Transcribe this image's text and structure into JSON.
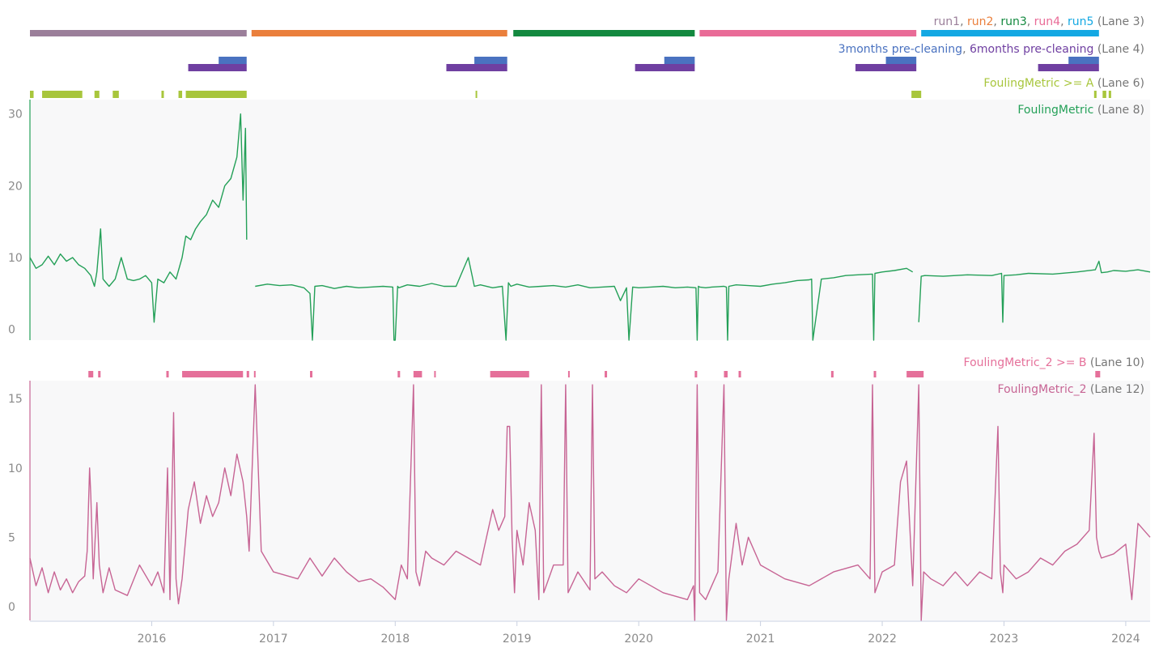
{
  "lanes": {
    "lane3": {
      "parts": [
        {
          "text": "run1",
          "color": "#9b7f9a"
        },
        {
          "text": ", ",
          "color": "#777777"
        },
        {
          "text": "run2",
          "color": "#ea7f3c"
        },
        {
          "text": ", ",
          "color": "#777777"
        },
        {
          "text": "run3",
          "color": "#13893f"
        },
        {
          "text": ", ",
          "color": "#777777"
        },
        {
          "text": "run4",
          "color": "#e96b97"
        },
        {
          "text": ", ",
          "color": "#777777"
        },
        {
          "text": "run5",
          "color": "#13a8e3"
        },
        {
          "text": " (Lane 3)",
          "color": "#777777"
        }
      ]
    },
    "lane4": {
      "parts": [
        {
          "text": "3months pre-cleaning",
          "color": "#4a72c0"
        },
        {
          "text": ", ",
          "color": "#777777"
        },
        {
          "text": "6months pre-cleaning",
          "color": "#6f3fa1"
        },
        {
          "text": " (Lane 4)",
          "color": "#777777"
        }
      ]
    },
    "lane6": {
      "parts": [
        {
          "text": "FoulingMetric >= A",
          "color": "#a8c63c"
        },
        {
          "text": " (Lane 6)",
          "color": "#777777"
        }
      ]
    },
    "lane8": {
      "parts": [
        {
          "text": "FoulingMetric",
          "color": "#24a058"
        },
        {
          "text": " (Lane 8)",
          "color": "#777777"
        }
      ]
    },
    "lane10": {
      "parts": [
        {
          "text": "FoulingMetric_2 >= B",
          "color": "#e5709a"
        },
        {
          "text": " (Lane 10)",
          "color": "#777777"
        }
      ]
    },
    "lane12": {
      "parts": [
        {
          "text": "FoulingMetric_2",
          "color": "#c76494"
        },
        {
          "text": " (Lane 12)",
          "color": "#777777"
        }
      ]
    }
  },
  "chart_data": {
    "type": "line",
    "x_axis": {
      "type": "time",
      "range": [
        2015.0,
        2024.2
      ],
      "ticks": [
        "2016",
        "2017",
        "2018",
        "2019",
        "2020",
        "2021",
        "2022",
        "2023",
        "2024"
      ]
    },
    "runs": [
      {
        "name": "run1",
        "start": 2015.0,
        "end": 2016.78,
        "color": "#9b7f9a"
      },
      {
        "name": "run2",
        "start": 2016.82,
        "end": 2018.92,
        "color": "#ea7f3c"
      },
      {
        "name": "run3",
        "start": 2018.97,
        "end": 2020.46,
        "color": "#13893f"
      },
      {
        "name": "run4",
        "start": 2020.5,
        "end": 2022.28,
        "color": "#e96b97"
      },
      {
        "name": "run5",
        "start": 2022.32,
        "end": 2023.78,
        "color": "#13a8e3"
      }
    ],
    "pre_cleaning": {
      "3months": {
        "color": "#4a72c0",
        "intervals": [
          [
            2016.55,
            2016.78
          ],
          [
            2018.65,
            2018.92
          ],
          [
            2020.21,
            2020.46
          ],
          [
            2022.03,
            2022.28
          ],
          [
            2023.53,
            2023.78
          ]
        ]
      },
      "6months": {
        "color": "#6f3fa1",
        "intervals": [
          [
            2016.3,
            2016.78
          ],
          [
            2018.42,
            2018.92
          ],
          [
            2019.97,
            2020.46
          ],
          [
            2021.78,
            2022.28
          ],
          [
            2023.28,
            2023.78
          ]
        ]
      }
    },
    "fouling_metric_ge_A": {
      "color": "#a8c63c",
      "intervals": [
        [
          2015.0,
          2015.03
        ],
        [
          2015.1,
          2015.43
        ],
        [
          2015.53,
          2015.57
        ],
        [
          2015.68,
          2015.73
        ],
        [
          2016.08,
          2016.1
        ],
        [
          2016.22,
          2016.25
        ],
        [
          2016.28,
          2016.78
        ],
        [
          2018.66,
          2018.67
        ],
        [
          2022.24,
          2022.32
        ],
        [
          2023.74,
          2023.76
        ],
        [
          2023.81,
          2023.84
        ],
        [
          2023.86,
          2023.88
        ]
      ]
    },
    "fouling_metric": {
      "color": "#24a058",
      "ylim": [
        -1.5,
        32
      ],
      "yticks": [
        0,
        10,
        20,
        30
      ],
      "x": [
        2015.0,
        2015.05,
        2015.1,
        2015.15,
        2015.2,
        2015.25,
        2015.3,
        2015.35,
        2015.4,
        2015.45,
        2015.5,
        2015.53,
        2015.55,
        2015.58,
        2015.6,
        2015.65,
        2015.7,
        2015.75,
        2015.8,
        2015.85,
        2015.9,
        2015.95,
        2016.0,
        2016.02,
        2016.05,
        2016.1,
        2016.15,
        2016.2,
        2016.25,
        2016.28,
        2016.32,
        2016.36,
        2016.4,
        2016.45,
        2016.5,
        2016.55,
        2016.6,
        2016.65,
        2016.7,
        2016.73,
        2016.75,
        2016.77,
        2016.78,
        null,
        2016.85,
        2016.95,
        2017.05,
        2017.15,
        2017.25,
        2017.3,
        2017.32,
        2017.34,
        2017.4,
        2017.5,
        2017.6,
        2017.7,
        2017.8,
        2017.9,
        2017.98,
        2017.99,
        2018.0,
        2018.02,
        2018.03,
        2018.1,
        2018.2,
        2018.3,
        2018.4,
        2018.5,
        2018.6,
        2018.65,
        2018.7,
        2018.8,
        2018.88,
        2018.91,
        2018.93,
        2018.95,
        2019.0,
        2019.1,
        2019.2,
        2019.3,
        2019.4,
        2019.5,
        2019.6,
        2019.7,
        2019.8,
        2019.85,
        2019.9,
        2019.92,
        2019.95,
        2020.0,
        2020.1,
        2020.2,
        2020.3,
        2020.4,
        2020.47,
        2020.48,
        2020.49,
        2020.5,
        2020.55,
        2020.6,
        2020.7,
        2020.72,
        2020.73,
        2020.74,
        2020.8,
        2020.9,
        2021.0,
        2021.1,
        2021.2,
        2021.3,
        2021.4,
        2021.42,
        2021.43,
        2021.5,
        2021.6,
        2021.7,
        2021.8,
        2021.92,
        2021.93,
        2021.94,
        2022.0,
        2022.1,
        2022.2,
        2022.25,
        null,
        2022.3,
        2022.32,
        2022.35,
        2022.5,
        2022.7,
        2022.9,
        2022.98,
        2022.99,
        2023.0,
        2023.1,
        2023.2,
        2023.4,
        2023.6,
        2023.75,
        2023.78,
        2023.8,
        2023.85,
        2023.9,
        2024.0,
        2024.1,
        2024.2
      ],
      "y": [
        10,
        8.5,
        9,
        10.2,
        9,
        10.5,
        9.5,
        10,
        9,
        8.5,
        7.5,
        6,
        8,
        14,
        7,
        6,
        7,
        10,
        7,
        6.8,
        7,
        7.5,
        6.5,
        1,
        7,
        6.5,
        8,
        7,
        10,
        13,
        12.5,
        14,
        15,
        16,
        18,
        17,
        20,
        21,
        24,
        30,
        18,
        28,
        12.5,
        null,
        6,
        6.3,
        6.1,
        6.2,
        5.8,
        5,
        -1.5,
        6,
        6.1,
        5.7,
        6,
        5.8,
        5.9,
        6,
        5.9,
        -1.5,
        -1.5,
        6,
        5.8,
        6.2,
        6,
        6.4,
        6,
        6,
        10,
        6,
        6.2,
        5.8,
        6,
        -1.5,
        6.5,
        6,
        6.3,
        5.9,
        6,
        6.1,
        5.9,
        6.2,
        5.8,
        5.9,
        6,
        4,
        5.8,
        -1.5,
        5.9,
        5.8,
        5.9,
        6,
        5.8,
        5.9,
        5.8,
        -1.5,
        6,
        5.9,
        5.8,
        5.9,
        6,
        5.9,
        -1.5,
        6,
        6.2,
        6.1,
        6,
        6.3,
        6.5,
        6.8,
        6.9,
        7,
        -1.5,
        7,
        7.2,
        7.5,
        7.6,
        7.7,
        -1.5,
        7.8,
        8,
        8.2,
        8.5,
        8,
        null,
        1,
        7.4,
        7.5,
        7.4,
        7.6,
        7.5,
        7.8,
        1,
        7.5,
        7.6,
        7.8,
        7.7,
        8,
        8.3,
        9.5,
        7.9,
        8,
        8.2,
        8.1,
        8.3,
        8
      ]
    },
    "fouling_metric_2_ge_B": {
      "color": "#e5709a",
      "intervals": [
        [
          2015.48,
          2015.52
        ],
        [
          2015.56,
          2015.58
        ],
        [
          2016.12,
          2016.14
        ],
        [
          2016.25,
          2016.75
        ],
        [
          2016.78,
          2016.8
        ],
        [
          2016.84,
          2016.85
        ],
        [
          2017.3,
          2017.32
        ],
        [
          2018.02,
          2018.04
        ],
        [
          2018.15,
          2018.22
        ],
        [
          2018.32,
          2018.33
        ],
        [
          2018.78,
          2019.1
        ],
        [
          2019.42,
          2019.43
        ],
        [
          2019.72,
          2019.74
        ],
        [
          2020.46,
          2020.48
        ],
        [
          2020.7,
          2020.73
        ],
        [
          2020.82,
          2020.84
        ],
        [
          2021.58,
          2021.6
        ],
        [
          2021.93,
          2021.95
        ],
        [
          2022.2,
          2022.34
        ],
        [
          2023.75,
          2023.79
        ]
      ]
    },
    "fouling_metric_2": {
      "color": "#c76494",
      "ylim": [
        -1,
        16.3
      ],
      "yticks": [
        0,
        5,
        10,
        15
      ],
      "x": [
        2015.0,
        2015.05,
        2015.1,
        2015.15,
        2015.2,
        2015.25,
        2015.3,
        2015.35,
        2015.4,
        2015.45,
        2015.47,
        2015.49,
        2015.5,
        2015.52,
        2015.55,
        2015.57,
        2015.6,
        2015.65,
        2015.7,
        2015.8,
        2015.9,
        2016.0,
        2016.05,
        2016.1,
        2016.13,
        2016.15,
        2016.18,
        2016.2,
        2016.22,
        2016.25,
        2016.3,
        2016.35,
        2016.4,
        2016.45,
        2016.5,
        2016.55,
        2016.6,
        2016.65,
        2016.7,
        2016.75,
        2016.78,
        2016.8,
        2016.85,
        2016.9,
        2017.0,
        2017.2,
        2017.3,
        2017.4,
        2017.5,
        2017.6,
        2017.7,
        2017.8,
        2017.9,
        2018.0,
        2018.05,
        2018.1,
        2018.15,
        2018.17,
        2018.2,
        2018.25,
        2018.3,
        2018.4,
        2018.5,
        2018.6,
        2018.7,
        2018.75,
        2018.8,
        2018.85,
        2018.9,
        2018.92,
        2018.94,
        2018.96,
        2018.98,
        2019.0,
        2019.05,
        2019.1,
        2019.15,
        2019.18,
        2019.2,
        2019.22,
        2019.3,
        2019.38,
        2019.4,
        2019.42,
        2019.5,
        2019.6,
        2019.62,
        2019.64,
        2019.7,
        2019.8,
        2019.9,
        2020.0,
        2020.2,
        2020.4,
        2020.45,
        2020.46,
        2020.48,
        2020.5,
        2020.55,
        2020.6,
        2020.65,
        2020.7,
        2020.72,
        2020.74,
        2020.8,
        2020.85,
        2020.9,
        2021.0,
        2021.2,
        2021.4,
        2021.6,
        2021.8,
        2021.9,
        2021.92,
        2021.94,
        2022.0,
        2022.1,
        2022.15,
        2022.2,
        2022.25,
        2022.3,
        2022.32,
        2022.34,
        2022.4,
        2022.5,
        2022.6,
        2022.7,
        2022.8,
        2022.9,
        2022.95,
        2022.97,
        2022.99,
        2023.0,
        2023.1,
        2023.2,
        2023.3,
        2023.4,
        2023.5,
        2023.6,
        2023.7,
        2023.74,
        2023.76,
        2023.78,
        2023.8,
        2023.9,
        2024.0,
        2024.05,
        2024.1,
        2024.15,
        2024.2
      ],
      "y": [
        3.5,
        1.5,
        2.8,
        1,
        2.5,
        1.2,
        2,
        1,
        1.8,
        2.2,
        4,
        10,
        8,
        2,
        7.5,
        3,
        1,
        2.8,
        1.2,
        0.8,
        3,
        1.5,
        2.5,
        1,
        10,
        0.5,
        14,
        2,
        0.2,
        2,
        7,
        9,
        6,
        8,
        6.5,
        7.5,
        10,
        8,
        11,
        9,
        6.5,
        4,
        16,
        4,
        2.5,
        2,
        3.5,
        2.2,
        3.5,
        2.5,
        1.8,
        2,
        1.4,
        0.5,
        3,
        2,
        16,
        2.5,
        1.5,
        4,
        3.5,
        3,
        4,
        3.5,
        3,
        5,
        7,
        5.5,
        6.5,
        13,
        13,
        5,
        1,
        5.5,
        3,
        7.5,
        5.5,
        0.5,
        16,
        1,
        3,
        3,
        16,
        1,
        2.5,
        1.2,
        16,
        2,
        2.5,
        1.5,
        1,
        2,
        1,
        0.5,
        1.5,
        -1,
        16,
        1,
        0.5,
        1.5,
        2.5,
        16,
        -1,
        2,
        6,
        3,
        5,
        3,
        2,
        1.5,
        2.5,
        3,
        2,
        16,
        1,
        2.5,
        3,
        9,
        10.5,
        1.5,
        16,
        -1,
        2.5,
        2,
        1.5,
        2.5,
        1.5,
        2.5,
        2,
        13,
        2.5,
        1,
        3,
        2,
        2.5,
        3.5,
        3,
        4,
        4.5,
        5.5,
        12.5,
        5,
        4,
        3.5,
        3.8,
        4.5,
        0.5,
        6,
        5.5,
        5
      ]
    }
  }
}
